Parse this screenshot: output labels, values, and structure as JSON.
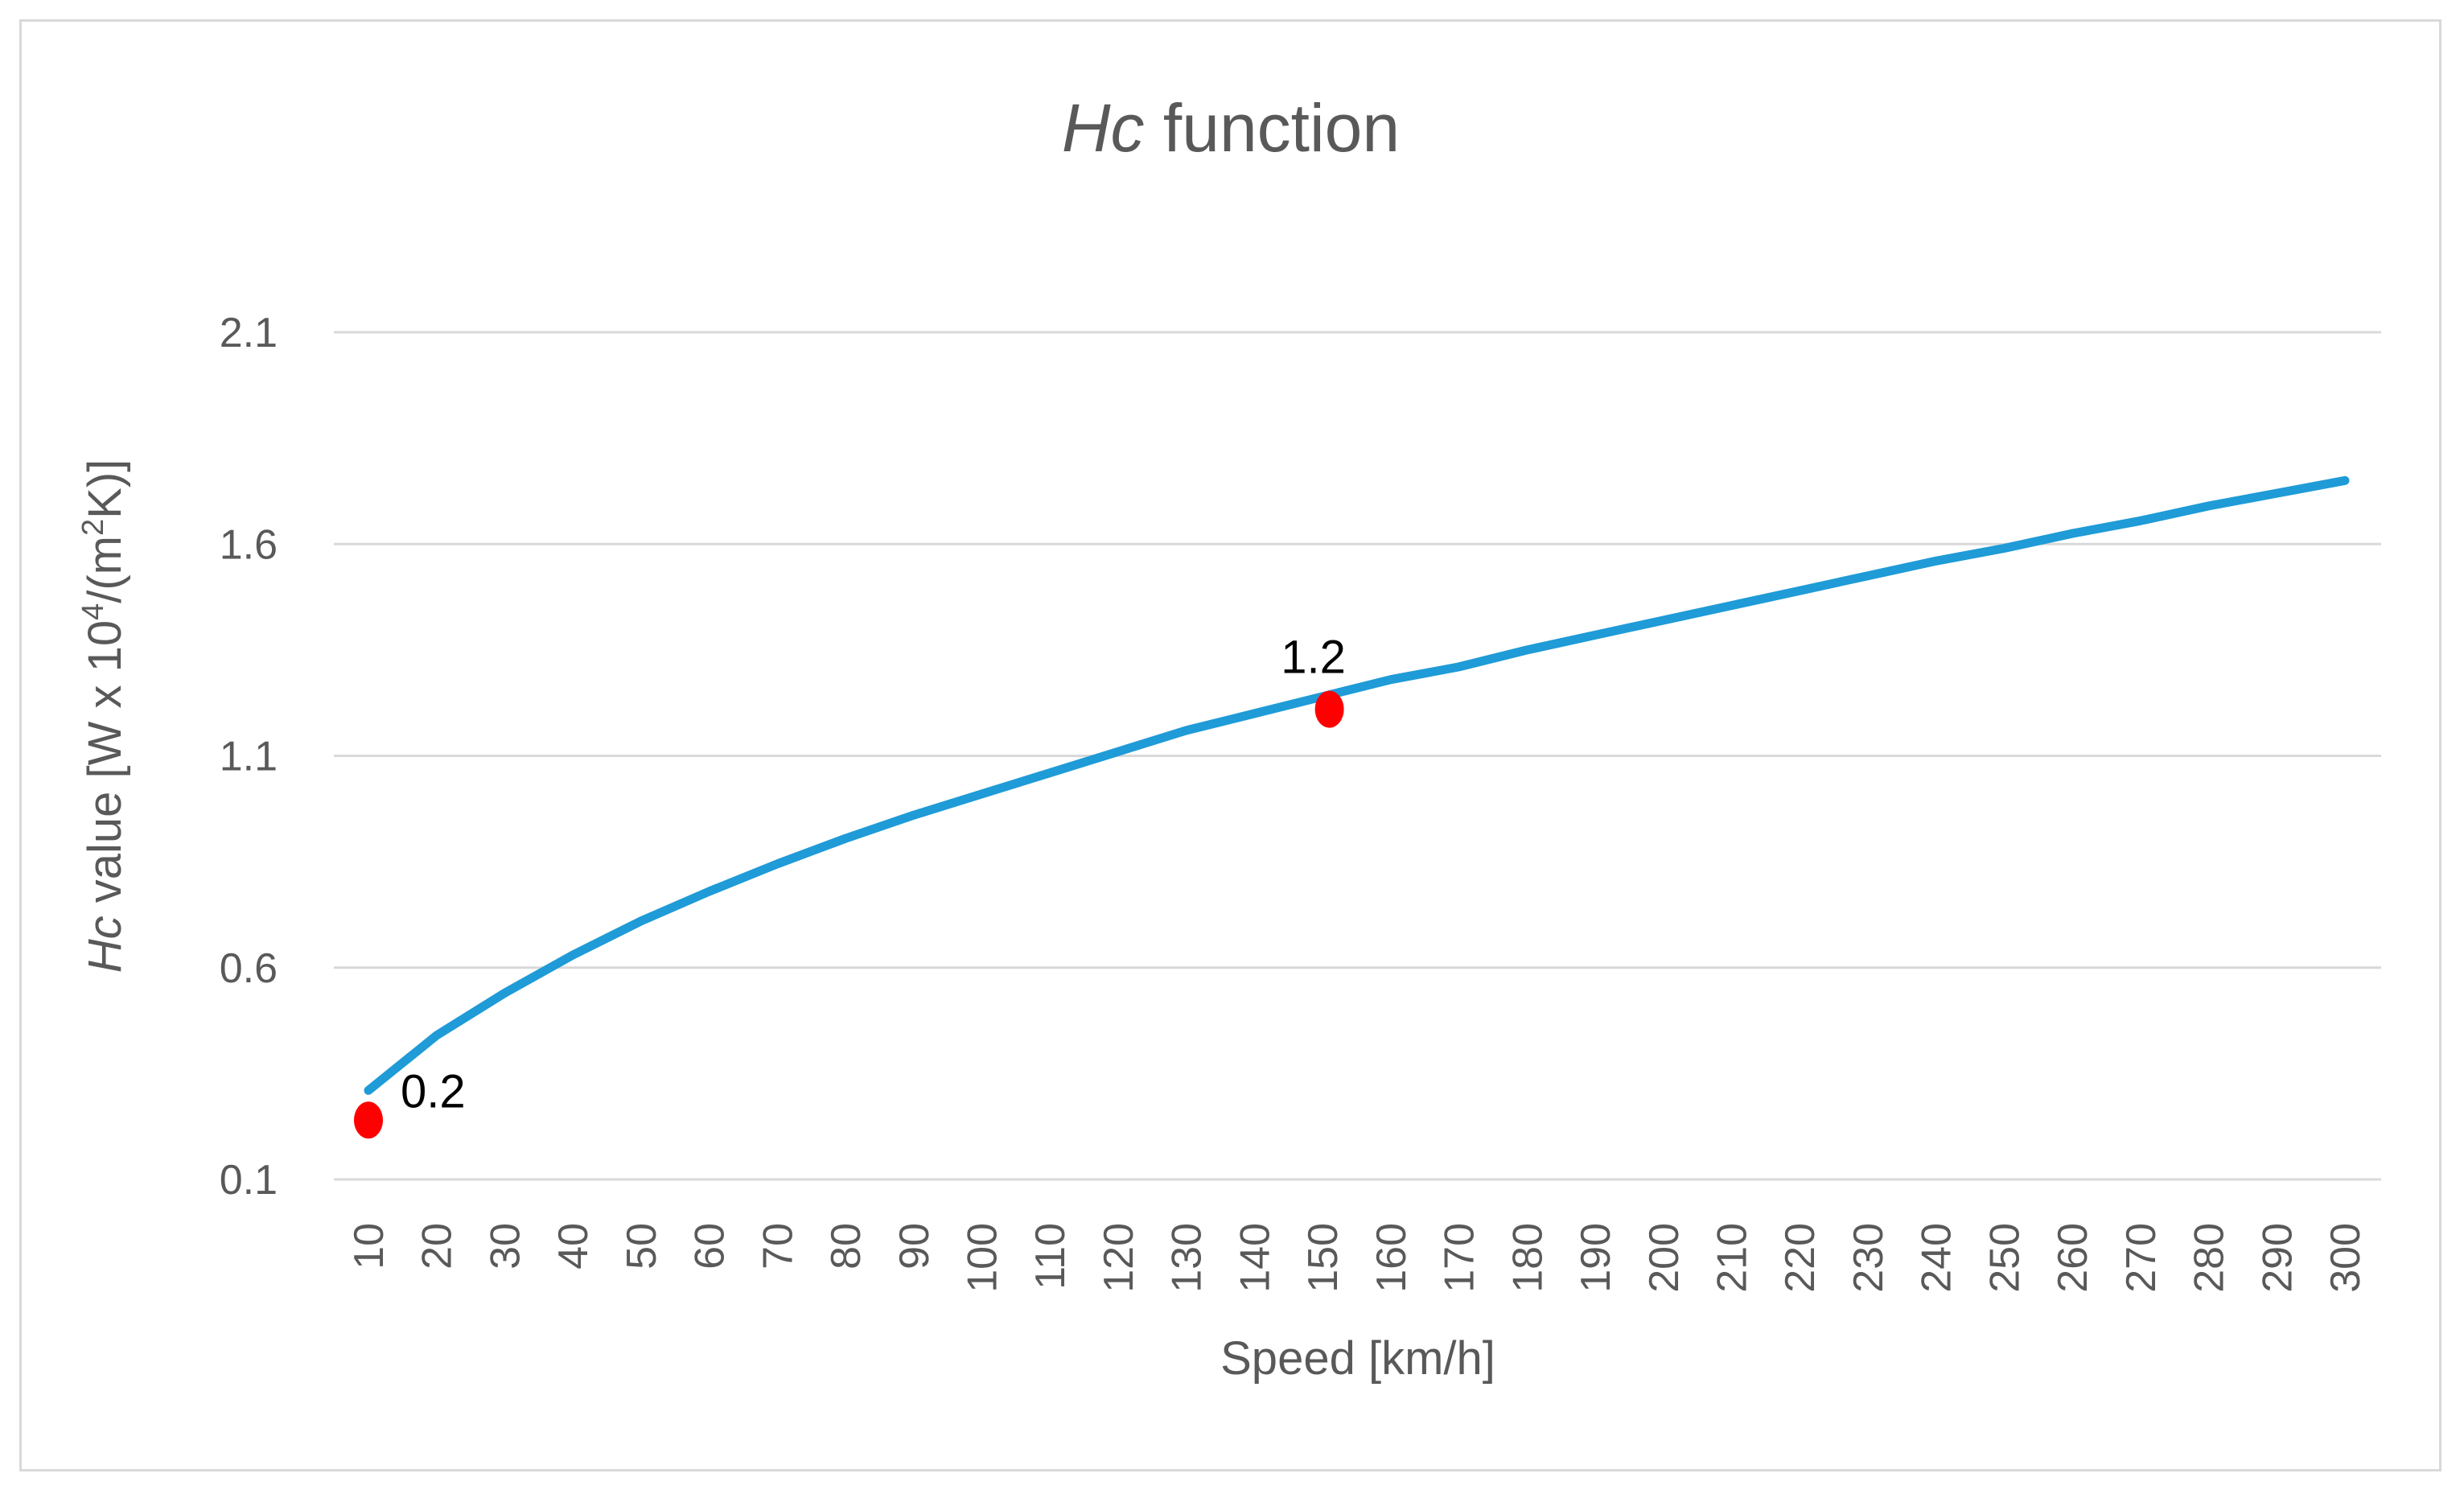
{
  "colors": {
    "series": "#1f9bd7",
    "marker": "#ff0000",
    "grid": "#d9d9d9",
    "text": "#595959"
  },
  "chart_data": {
    "type": "line",
    "title_italic": "Hc",
    "title_rest": " function",
    "xlabel": "Speed [km/h]",
    "ylabel_italic": "Hc",
    "ylabel_part1": " value [W x 10",
    "ylabel_sup1": "4",
    "ylabel_part2": "/(m",
    "ylabel_sup2": "2",
    "ylabel_part3": "K)]",
    "ylim": [
      0.1,
      2.1
    ],
    "yticks": [
      0.1,
      0.6,
      1.1,
      1.6,
      2.1
    ],
    "ytick_labels": [
      "0.1",
      "0.6",
      "1.1",
      "1.6",
      "2.1"
    ],
    "grid": true,
    "x": [
      10,
      20,
      30,
      40,
      50,
      60,
      70,
      80,
      90,
      100,
      110,
      120,
      130,
      140,
      150,
      160,
      170,
      180,
      190,
      200,
      210,
      220,
      230,
      240,
      250,
      260,
      270,
      280,
      290,
      300
    ],
    "xtick_labels": [
      "10",
      "20",
      "30",
      "40",
      "50",
      "60",
      "70",
      "80",
      "90",
      "100",
      "110",
      "120",
      "130",
      "140",
      "150",
      "160",
      "170",
      "180",
      "190",
      "200",
      "210",
      "220",
      "230",
      "240",
      "250",
      "260",
      "270",
      "280",
      "290",
      "300"
    ],
    "series": [
      {
        "name": "Hc",
        "values": [
          0.31,
          0.44,
          0.54,
          0.63,
          0.71,
          0.78,
          0.845,
          0.905,
          0.96,
          1.01,
          1.06,
          1.11,
          1.16,
          1.2,
          1.24,
          1.28,
          1.31,
          1.35,
          1.385,
          1.42,
          1.455,
          1.49,
          1.525,
          1.56,
          1.59,
          1.625,
          1.655,
          1.69,
          1.72,
          1.75
        ]
      }
    ],
    "markers": [
      {
        "x": 10,
        "y": 0.24,
        "label": "0.2"
      },
      {
        "x": 151,
        "y": 1.21,
        "label": "1.2"
      }
    ]
  }
}
